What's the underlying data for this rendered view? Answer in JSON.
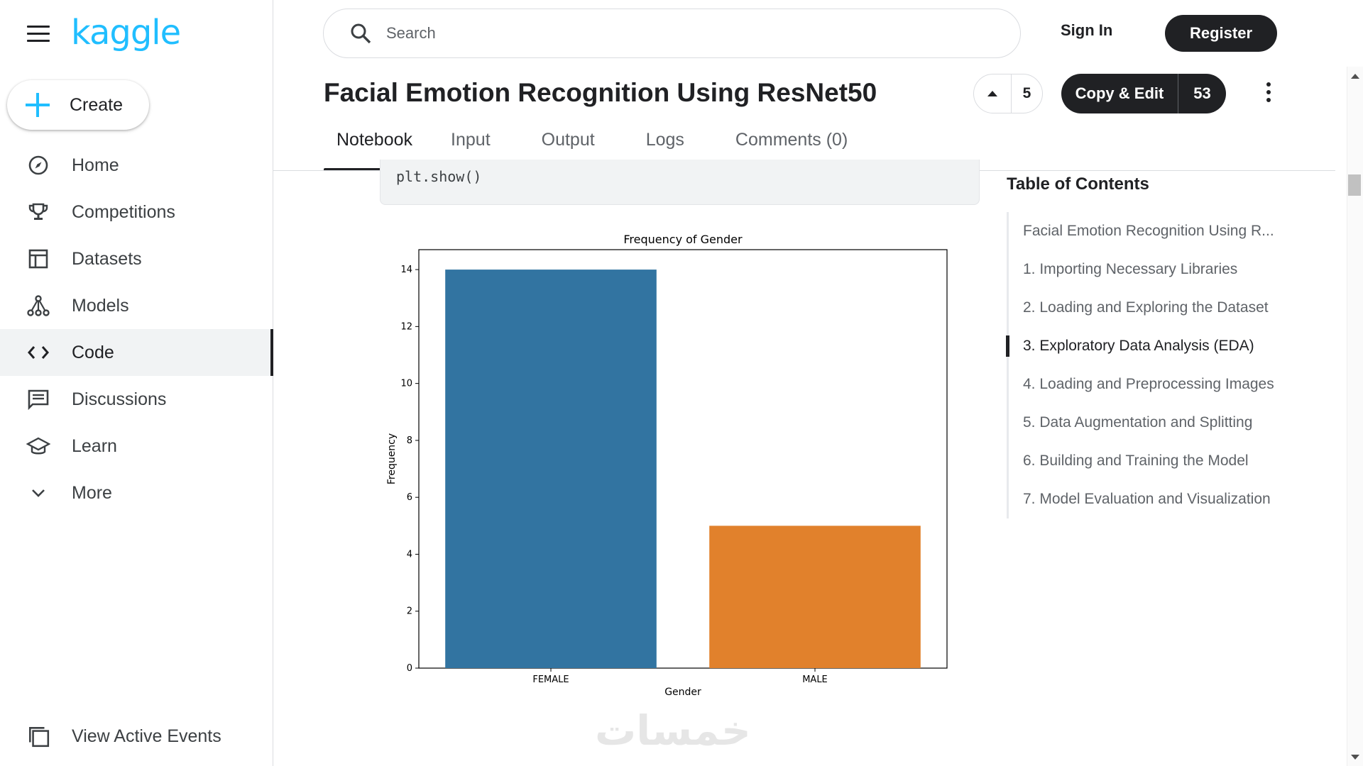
{
  "sidebar": {
    "logo": "kaggle",
    "create_label": "Create",
    "items": [
      {
        "label": "Home",
        "icon": "compass-icon"
      },
      {
        "label": "Competitions",
        "icon": "trophy-icon"
      },
      {
        "label": "Datasets",
        "icon": "table-icon"
      },
      {
        "label": "Models",
        "icon": "models-icon"
      },
      {
        "label": "Code",
        "icon": "code-icon",
        "active": true
      },
      {
        "label": "Discussions",
        "icon": "discussion-icon"
      },
      {
        "label": "Learn",
        "icon": "graduation-cap-icon"
      },
      {
        "label": "More",
        "icon": "chevron-down-icon"
      }
    ],
    "view_active_events": "View Active Events"
  },
  "header": {
    "search_placeholder": "Search",
    "sign_in": "Sign In",
    "register": "Register"
  },
  "notebook": {
    "title": "Facial Emotion Recognition Using ResNet50",
    "upvotes": "5",
    "copy_edit_label": "Copy & Edit",
    "copy_edit_count": "53",
    "tabs": [
      "Notebook",
      "Input",
      "Output",
      "Logs",
      "Comments (0)"
    ],
    "active_tab": "Notebook",
    "code_line": "plt.show()"
  },
  "chart_data": {
    "type": "bar",
    "title": "Frequency of Gender",
    "xlabel": "Gender",
    "ylabel": "Frequency",
    "categories": [
      "FEMALE",
      "MALE"
    ],
    "values": [
      14,
      5
    ],
    "colors": [
      "#3274a1",
      "#e1812c"
    ],
    "ylim": [
      0,
      14.7
    ],
    "yticks": [
      0,
      2,
      4,
      6,
      8,
      10,
      12,
      14
    ],
    "grid": false
  },
  "toc": {
    "title": "Table of Contents",
    "items": [
      "Facial Emotion Recognition Using R...",
      "1. Importing Necessary Libraries",
      "2. Loading and Exploring the Dataset",
      "3. Exploratory Data Analysis (EDA)",
      "4. Loading and Preprocessing Images",
      "5. Data Augmentation and Splitting",
      "6. Building and Training the Model",
      "7. Model Evaluation and Visualization"
    ],
    "active_index": 3
  },
  "watermark": "خمسات",
  "colors": {
    "brand": "#20beff",
    "dark": "#202124",
    "accent_plus": "#20beff"
  }
}
